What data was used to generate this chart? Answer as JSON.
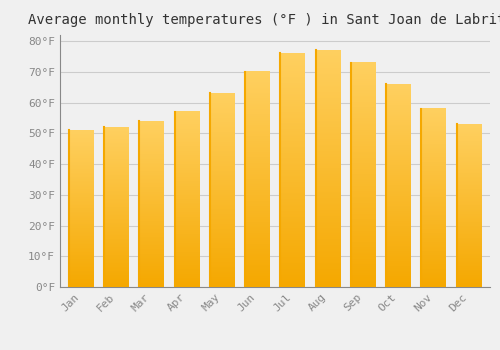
{
  "title": "Average monthly temperatures (°F ) in Sant Joan de Labritja",
  "months": [
    "Jan",
    "Feb",
    "Mar",
    "Apr",
    "May",
    "Jun",
    "Jul",
    "Aug",
    "Sep",
    "Oct",
    "Nov",
    "Dec"
  ],
  "values": [
    51,
    52,
    54,
    57,
    63,
    70,
    76,
    77,
    73,
    66,
    58,
    53
  ],
  "bar_color_light": "#FFD060",
  "bar_color_dark": "#F5A800",
  "background_color": "#F0F0F0",
  "grid_color": "#CCCCCC",
  "ylim": [
    0,
    82
  ],
  "yticks": [
    0,
    10,
    20,
    30,
    40,
    50,
    60,
    70,
    80
  ],
  "ytick_labels": [
    "0°F",
    "10°F",
    "20°F",
    "30°F",
    "40°F",
    "50°F",
    "60°F",
    "70°F",
    "80°F"
  ],
  "title_fontsize": 10,
  "tick_fontsize": 8,
  "font_family": "monospace"
}
